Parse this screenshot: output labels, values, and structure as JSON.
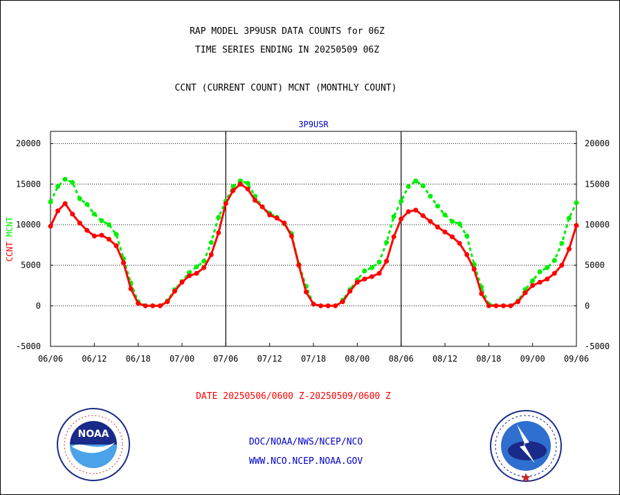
{
  "header": {
    "line1": "RAP MODEL 3P9USR DATA COUNTS for 06Z",
    "line2": "TIME SERIES ENDING IN 20250509 06Z",
    "line3": "CCNT (CURRENT COUNT) MCNT (MONTHLY COUNT)"
  },
  "panel_label": "3P9USR",
  "date_range": "DATE 20250506/0600 Z-20250509/0600 Z",
  "footer": {
    "line1": "DOC/NOAA/NWS/NCEP/NCO",
    "line2": "WWW.NCO.NCEP.NOAA.GOV"
  },
  "logos": {
    "left": "noaa-logo",
    "right": "national-weather-service-logo"
  },
  "colors": {
    "ccnt": "#ff0000",
    "mcnt": "#00ee00",
    "text_blue": "#0000cc"
  },
  "chart_data": {
    "type": "line",
    "title": "3P9USR",
    "ylabel_parts": [
      {
        "text": "CCNT",
        "color": "#ff0000"
      },
      {
        "text": "MCNT",
        "color": "#00ee00"
      }
    ],
    "x_tick_labels": [
      "06/06",
      "06/12",
      "06/18",
      "07/00",
      "07/06",
      "07/12",
      "07/18",
      "08/00",
      "08/06",
      "08/12",
      "08/18",
      "09/00",
      "09/06"
    ],
    "x_unit": "hours since 06/06",
    "xlim": [
      0,
      72
    ],
    "ylim": [
      -5000,
      21500
    ],
    "yticks": [
      -5000,
      0,
      5000,
      10000,
      15000,
      20000
    ],
    "grid": true,
    "day_separators_at_hours": [
      24,
      48
    ],
    "series": [
      {
        "name": "CCNT",
        "color": "#ff0000",
        "style": "solid",
        "x": [
          0,
          1,
          2,
          3,
          4,
          5,
          6,
          7,
          8,
          9,
          10,
          11,
          12,
          13,
          14,
          15,
          16,
          17,
          18,
          19,
          20,
          21,
          22,
          23,
          24,
          25,
          26,
          27,
          28,
          29,
          30,
          31,
          32,
          33,
          34,
          35,
          36,
          37,
          38,
          39,
          40,
          41,
          42,
          43,
          44,
          45,
          46,
          47,
          48,
          49,
          50,
          51,
          52,
          53,
          54,
          55,
          56,
          57,
          58,
          59,
          60,
          61,
          62,
          63,
          64,
          65,
          66,
          67,
          68,
          69,
          70,
          71,
          72
        ],
        "values": [
          9800,
          11700,
          12600,
          11300,
          10200,
          9300,
          8600,
          8700,
          8200,
          7400,
          5300,
          2100,
          300,
          0,
          0,
          0,
          500,
          1800,
          2900,
          3700,
          4000,
          4700,
          6300,
          9000,
          12600,
          14200,
          15000,
          14400,
          13000,
          12200,
          11200,
          10800,
          10200,
          8600,
          5000,
          1700,
          200,
          0,
          0,
          0,
          500,
          1800,
          2900,
          3300,
          3600,
          4000,
          5500,
          8500,
          10700,
          11600,
          11800,
          11100,
          10400,
          9700,
          9100,
          8500,
          7700,
          6300,
          4500,
          1500,
          0,
          0,
          0,
          0,
          500,
          1600,
          2500,
          2900,
          3300,
          4000,
          5000,
          7000,
          9900
        ]
      },
      {
        "name": "MCNT",
        "color": "#00ee00",
        "style": "dashed",
        "x": [
          0,
          1,
          2,
          3,
          4,
          5,
          6,
          7,
          8,
          9,
          10,
          11,
          12,
          13,
          14,
          15,
          16,
          17,
          18,
          19,
          20,
          21,
          22,
          23,
          24,
          25,
          26,
          27,
          28,
          29,
          30,
          31,
          32,
          33,
          34,
          35,
          36,
          37,
          38,
          39,
          40,
          41,
          42,
          43,
          44,
          45,
          46,
          47,
          48,
          49,
          50,
          51,
          52,
          53,
          54,
          55,
          56,
          57,
          58,
          59,
          60,
          61,
          62,
          63,
          64,
          65,
          66,
          67,
          68,
          69,
          70,
          71,
          72
        ],
        "values": [
          12800,
          14700,
          15600,
          15200,
          13200,
          12500,
          11300,
          10500,
          10000,
          8800,
          5800,
          2800,
          500,
          0,
          0,
          0,
          600,
          2000,
          3000,
          4100,
          4800,
          5500,
          7800,
          10900,
          12900,
          14700,
          15400,
          15100,
          13500,
          12200,
          11400,
          10900,
          10100,
          8900,
          5100,
          2400,
          200,
          0,
          0,
          0,
          700,
          2000,
          3200,
          4300,
          4700,
          5400,
          7800,
          11000,
          12900,
          14700,
          15400,
          14800,
          13500,
          12300,
          11200,
          10400,
          10100,
          8600,
          5100,
          2300,
          200,
          0,
          0,
          0,
          600,
          2000,
          3100,
          4200,
          4700,
          5600,
          7700,
          10800,
          12700
        ]
      }
    ]
  }
}
